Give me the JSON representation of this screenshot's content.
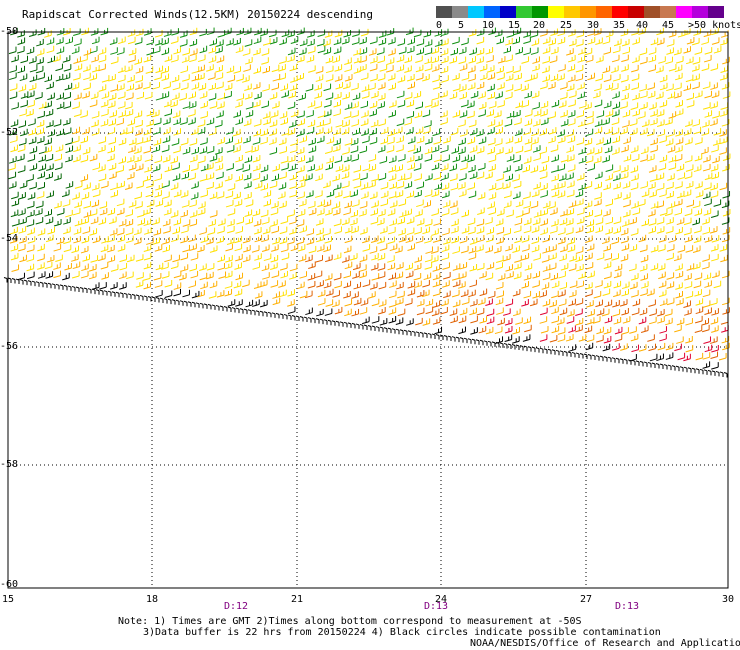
{
  "title": "Rapidscat Corrected Winds(12.5KM) 20150224 descending",
  "legend": {
    "colors": [
      "#505050",
      "#8a8a8a",
      "#00c8ff",
      "#0064ff",
      "#0000c8",
      "#32c832",
      "#009600",
      "#ffff00",
      "#ffc800",
      "#ff9600",
      "#ff6400",
      "#ff0000",
      "#c80000",
      "#a05028",
      "#c87850",
      "#ff00ff",
      "#b400dc",
      "#64008c"
    ],
    "labels": [
      "0",
      "5",
      "10",
      "15",
      "20",
      "25",
      "30",
      "35",
      "40",
      "45",
      ">50 knots"
    ]
  },
  "lat_labels": [
    "-50",
    "-52",
    "-54",
    "-56",
    "-58",
    "-60"
  ],
  "lon_labels": [
    "15",
    "18",
    "21",
    "24",
    "27",
    "30"
  ],
  "day_labels": [
    "D:12",
    "D:13",
    "D:13"
  ],
  "notes": {
    "line1": "Note: 1) Times are GMT 2)Times along bottom correspond to measurement at -50S",
    "line2": "3)Data buffer is 22 hrs from 20150224 4) Black circles indicate possible contamination",
    "credit": "NOAA/NESDIS/Office of Research and Applications"
  },
  "barb_colors": {
    "green": "#109010",
    "darkgreen": "#006400",
    "yellow": "#ffe000",
    "orange": "#ffb000",
    "darkorange": "#e06000",
    "red": "#e00030",
    "black": "#000000"
  }
}
